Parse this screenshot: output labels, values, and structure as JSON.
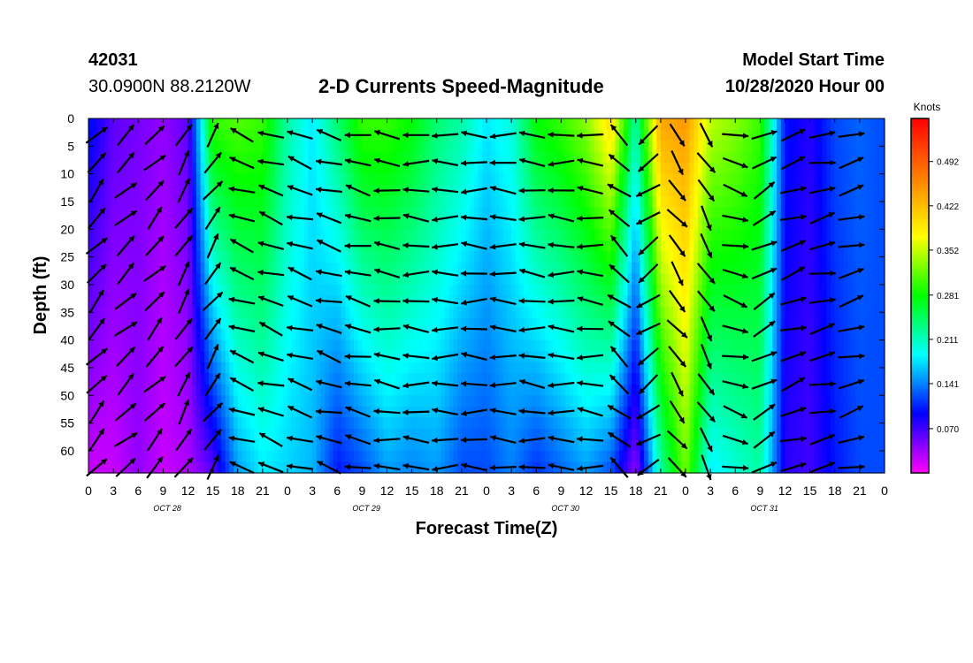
{
  "header": {
    "station_id": "42031",
    "location": "30.0900N 88.2120W",
    "title": "2-D Currents Speed-Magnitude",
    "model_start_label": "Model Start Time",
    "model_start_value": "10/28/2020 Hour 00"
  },
  "chart_data": {
    "type": "heatmap",
    "title": "2-D Currents Speed-Magnitude",
    "xlabel": "Forecast Time(Z)",
    "ylabel": "Depth (ft)",
    "x_tick_labels": [
      "0",
      "3",
      "6",
      "9",
      "12",
      "15",
      "18",
      "21",
      "0",
      "3",
      "6",
      "9",
      "12",
      "15",
      "18",
      "21",
      "0",
      "3",
      "6",
      "9",
      "12",
      "15",
      "18",
      "21",
      "0",
      "3",
      "6",
      "9",
      "12",
      "15",
      "18",
      "21",
      "0"
    ],
    "day_labels": [
      "OCT 28",
      "OCT 29",
      "OCT 30",
      "OCT 31"
    ],
    "x_range_hours": [
      0,
      96
    ],
    "y_tick_labels": [
      "0",
      "5",
      "10",
      "15",
      "20",
      "25",
      "30",
      "35",
      "40",
      "45",
      "50",
      "55",
      "60"
    ],
    "ylim_ft": [
      0,
      64
    ],
    "y_inverted": true,
    "colorbar": {
      "unit": "Knots",
      "tick_labels": [
        "0.492",
        "0.422",
        "0.352",
        "0.281",
        "0.211",
        "0.141",
        "0.070"
      ],
      "range": [
        0,
        0.56
      ],
      "colors": [
        "#ff00ff",
        "#8000ff",
        "#0000ff",
        "#0080ff",
        "#00ffff",
        "#00ff80",
        "#00ff00",
        "#80ff00",
        "#ffff00",
        "#ffc000",
        "#ff8000",
        "#ff4000",
        "#ff0000"
      ]
    },
    "speed_by_hour": [
      {
        "hour": 0,
        "surface": 0.1,
        "bottom": 0.02
      },
      {
        "hour": 3,
        "surface": 0.06,
        "bottom": 0.02
      },
      {
        "hour": 6,
        "surface": 0.05,
        "bottom": 0.04
      },
      {
        "hour": 9,
        "surface": 0.04,
        "bottom": 0.02
      },
      {
        "hour": 12,
        "surface": 0.06,
        "bottom": 0.03
      },
      {
        "hour": 15,
        "surface": 0.3,
        "bottom": 0.06
      },
      {
        "hour": 18,
        "surface": 0.31,
        "bottom": 0.15
      },
      {
        "hour": 21,
        "surface": 0.3,
        "bottom": 0.18
      },
      {
        "hour": 24,
        "surface": 0.22,
        "bottom": 0.17
      },
      {
        "hour": 27,
        "surface": 0.18,
        "bottom": 0.16
      },
      {
        "hour": 30,
        "surface": 0.24,
        "bottom": 0.1
      },
      {
        "hour": 33,
        "surface": 0.3,
        "bottom": 0.12
      },
      {
        "hour": 36,
        "surface": 0.3,
        "bottom": 0.15
      },
      {
        "hour": 39,
        "surface": 0.28,
        "bottom": 0.14
      },
      {
        "hour": 42,
        "surface": 0.24,
        "bottom": 0.15
      },
      {
        "hour": 45,
        "surface": 0.22,
        "bottom": 0.12
      },
      {
        "hour": 48,
        "surface": 0.18,
        "bottom": 0.12
      },
      {
        "hour": 51,
        "surface": 0.2,
        "bottom": 0.14
      },
      {
        "hour": 54,
        "surface": 0.28,
        "bottom": 0.11
      },
      {
        "hour": 57,
        "surface": 0.3,
        "bottom": 0.13
      },
      {
        "hour": 60,
        "surface": 0.33,
        "bottom": 0.15
      },
      {
        "hour": 63,
        "surface": 0.4,
        "bottom": 0.12
      },
      {
        "hour": 66,
        "surface": 0.22,
        "bottom": 0.04
      },
      {
        "hour": 69,
        "surface": 0.44,
        "bottom": 0.22
      },
      {
        "hour": 72,
        "surface": 0.45,
        "bottom": 0.32
      },
      {
        "hour": 75,
        "surface": 0.35,
        "bottom": 0.18
      },
      {
        "hour": 78,
        "surface": 0.33,
        "bottom": 0.2
      },
      {
        "hour": 81,
        "surface": 0.3,
        "bottom": 0.22
      },
      {
        "hour": 84,
        "surface": 0.1,
        "bottom": 0.08
      },
      {
        "hour": 87,
        "surface": 0.08,
        "bottom": 0.07
      },
      {
        "hour": 90,
        "surface": 0.12,
        "bottom": 0.1
      },
      {
        "hour": 93,
        "surface": 0.13,
        "bottom": 0.12
      },
      {
        "hour": 96,
        "surface": 0.12,
        "bottom": 0.12
      }
    ],
    "direction_deg_by_hour": [
      {
        "hour": 0,
        "dir": 40
      },
      {
        "hour": 6,
        "dir": 50
      },
      {
        "hour": 12,
        "dir": 30
      },
      {
        "hour": 15,
        "dir": 35
      },
      {
        "hour": 18,
        "dir": 290
      },
      {
        "hour": 30,
        "dir": 285
      },
      {
        "hour": 42,
        "dir": 270
      },
      {
        "hour": 54,
        "dir": 275
      },
      {
        "hour": 60,
        "dir": 270
      },
      {
        "hour": 66,
        "dir": 330
      },
      {
        "hour": 69,
        "dir": 140
      },
      {
        "hour": 75,
        "dir": 150
      },
      {
        "hour": 81,
        "dir": 60
      },
      {
        "hour": 84,
        "dir": 70
      },
      {
        "hour": 90,
        "dir": 80
      },
      {
        "hour": 96,
        "dir": 65
      }
    ]
  }
}
